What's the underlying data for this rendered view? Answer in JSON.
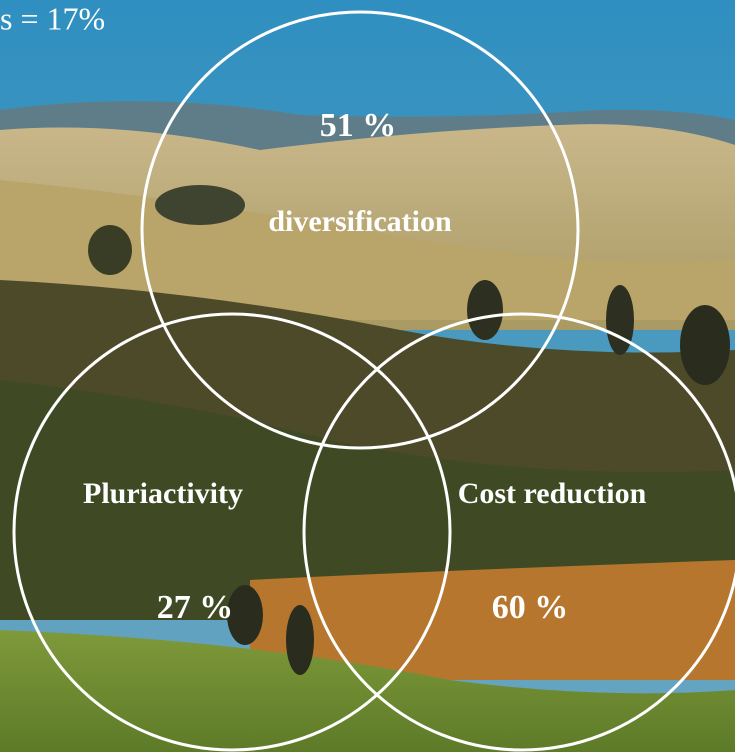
{
  "corner_text": "s = 17%",
  "circles": [
    {
      "label": "diversification",
      "value": "51 %"
    },
    {
      "label": "Pluriactivity",
      "value": "27 %"
    },
    {
      "label": "Cost reduction",
      "value": "60 %"
    }
  ]
}
